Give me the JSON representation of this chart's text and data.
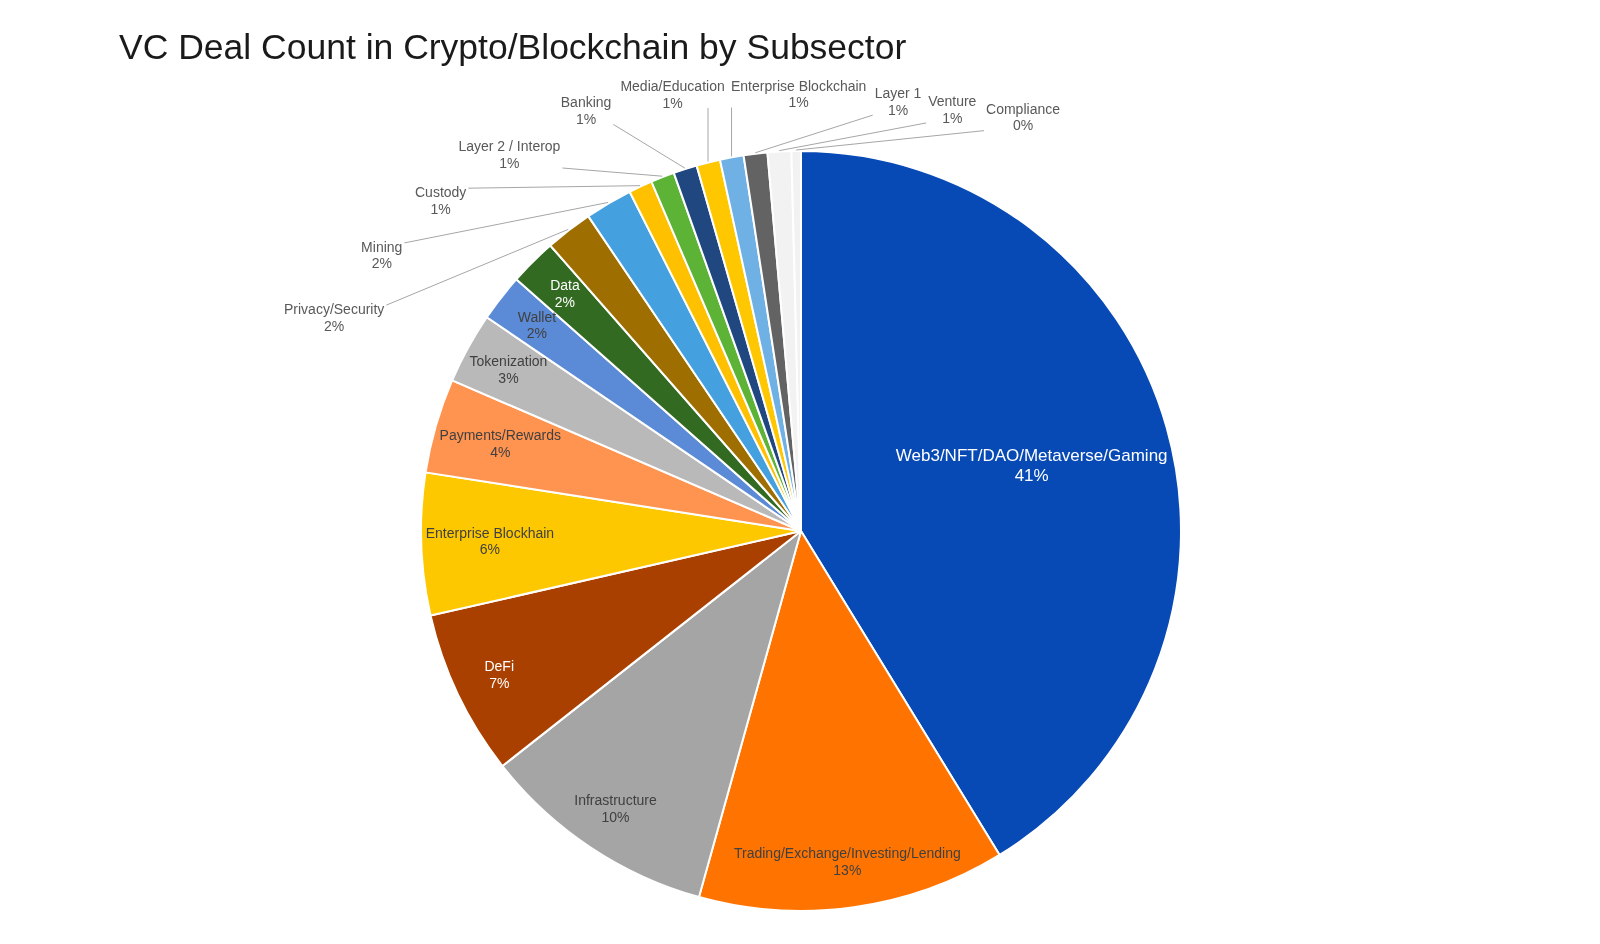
{
  "chart_data": {
    "type": "pie",
    "title": "VC Deal Count in Crypto/Blockchain by Subsector",
    "categories": [
      "Web3/NFT/DAO/Metaverse/Gaming",
      "Trading/Exchange/Investing/Lending",
      "Infrastructure",
      "DeFi",
      "Enterprise Blockhain",
      "Payments/Rewards",
      "Tokenization",
      "Wallet",
      "Data",
      "Privacy/Security",
      "Mining",
      "Custody",
      "Layer 2 / Interop",
      "Banking",
      "Media/Education",
      "Enterprise Blockchain",
      "Layer 1",
      "Venture",
      "Compliance"
    ],
    "values": [
      41,
      13,
      10,
      7,
      6,
      4,
      3,
      2,
      2,
      2,
      2,
      1,
      1,
      1,
      1,
      1,
      1,
      1,
      0.4
    ],
    "value_labels": [
      "41%",
      "13%",
      "10%",
      "7%",
      "6%",
      "4%",
      "3%",
      "2%",
      "2%",
      "2%",
      "2%",
      "1%",
      "1%",
      "1%",
      "1%",
      "1%",
      "1%",
      "1%",
      "0%"
    ],
    "colors": [
      "#0749b5",
      "#ff7400",
      "#a5a5a5",
      "#a94000",
      "#fec800",
      "#ff9350",
      "#b9b9b9",
      "#5b8bd6",
      "#336a22",
      "#9e6e00",
      "#44a0de",
      "#ffc000",
      "#5cb336",
      "#204780",
      "#ffc700",
      "#6fb1e4",
      "#636363",
      "#f2f2f2",
      "#f2f2f2"
    ]
  }
}
